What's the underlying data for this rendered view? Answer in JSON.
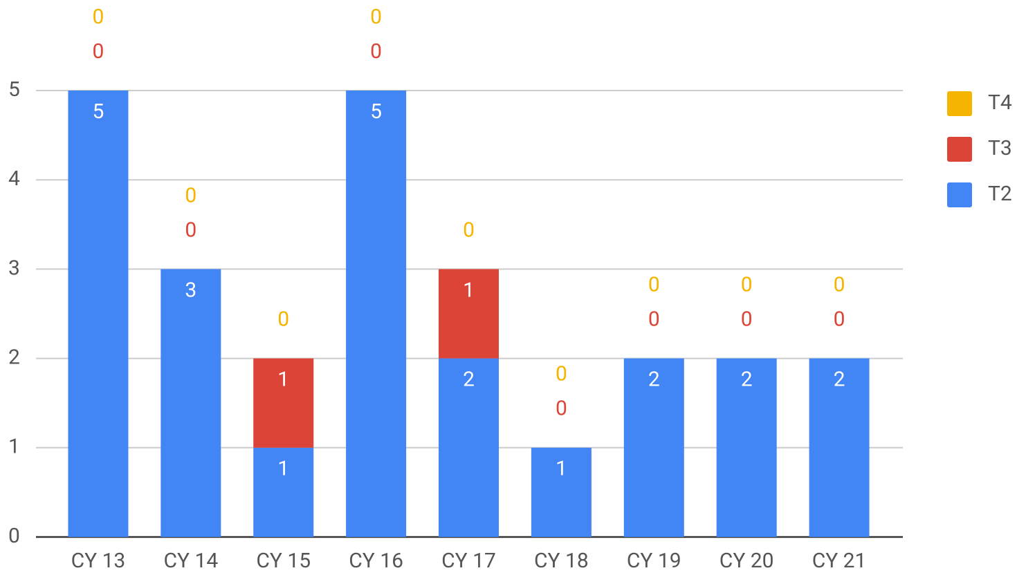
{
  "chart_data": {
    "type": "stacked_bar",
    "categories": [
      "CY 13",
      "CY 14",
      "CY 15",
      "CY 16",
      "CY 17",
      "CY 18",
      "CY 19",
      "CY 20",
      "CY 21"
    ],
    "series": [
      {
        "name": "T2",
        "color": "#4285f4",
        "values": [
          5,
          3,
          1,
          5,
          2,
          1,
          2,
          2,
          2
        ]
      },
      {
        "name": "T3",
        "color": "#db4437",
        "values": [
          0,
          0,
          1,
          0,
          1,
          0,
          0,
          0,
          0
        ]
      },
      {
        "name": "T4",
        "color": "#f4b400",
        "values": [
          0,
          0,
          0,
          0,
          0,
          0,
          0,
          0,
          0
        ]
      }
    ],
    "ylim": [
      0,
      5
    ],
    "yticks": [
      0,
      1,
      2,
      3,
      4,
      5
    ],
    "grid": true,
    "legend": "right"
  }
}
